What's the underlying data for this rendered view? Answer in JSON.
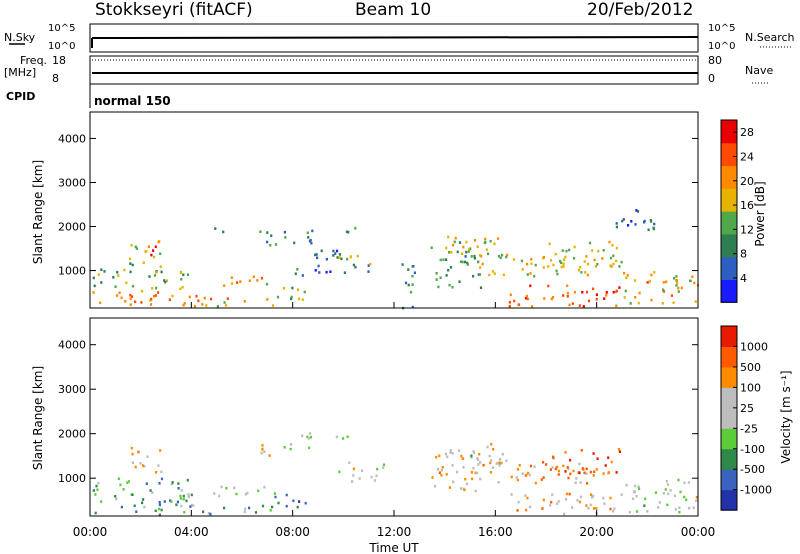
{
  "header": {
    "title": "Stokkseyri (fitACF)",
    "beam": "Beam 10",
    "date": "20/Feb/2012"
  },
  "status_panels": {
    "nsky": {
      "label": "N.Sky",
      "ticks": [
        "10^5",
        "10^0"
      ]
    },
    "nsearch": {
      "label": "N.Search",
      "ticks": [
        "10^5",
        "10^0"
      ]
    },
    "freq": {
      "label": "Freq.",
      "unit": "[MHz]",
      "ticks": [
        "18",
        "8"
      ]
    },
    "nave": {
      "label": "Nave",
      "ticks": [
        "80",
        "0"
      ]
    },
    "cpid": {
      "label": "CPID",
      "value": "normal 150"
    }
  },
  "chart_data": [
    {
      "type": "heatmap",
      "title": "",
      "xlabel": "Time UT",
      "ylabel": "Slant Range [km]",
      "xlim": [
        "00:00",
        "00:00"
      ],
      "xticks": [
        "00:00",
        "04:00",
        "08:00",
        "12:00",
        "16:00",
        "20:00",
        "00:00"
      ],
      "ylim": [
        150,
        4600
      ],
      "yticks": [
        1000,
        2000,
        3000,
        4000
      ],
      "colorbar": {
        "label": "Power [dB]",
        "ticks": [
          4,
          8,
          12,
          16,
          20,
          24,
          28
        ],
        "range": [
          0,
          30
        ],
        "colors": [
          "#1a1aff",
          "#2c5fbf",
          "#2d7f52",
          "#4fa84a",
          "#e6b400",
          "#ff8a00",
          "#ff4a00",
          "#e80000"
        ]
      },
      "regions": [
        {
          "t": [
            0.1,
            4.5
          ],
          "r": [
            200,
            560
          ],
          "level": 0.7
        },
        {
          "t": [
            0.1,
            4.0
          ],
          "r": [
            560,
            1050
          ],
          "level": 0.45
        },
        {
          "t": [
            1.5,
            2.8
          ],
          "r": [
            1100,
            1750
          ],
          "level": 0.5
        },
        {
          "t": [
            2.3,
            2.9
          ],
          "r": [
            1300,
            1700
          ],
          "level": 0.85
        },
        {
          "t": [
            4.0,
            7.2
          ],
          "r": [
            220,
            420
          ],
          "level": 0.65
        },
        {
          "t": [
            4.8,
            7.0
          ],
          "r": [
            620,
            900
          ],
          "level": 0.6
        },
        {
          "t": [
            6.6,
            7.4
          ],
          "r": [
            1500,
            1950
          ],
          "level": 0.35
        },
        {
          "t": [
            7.5,
            8.8
          ],
          "r": [
            1650,
            2050
          ],
          "level": 0.3
        },
        {
          "t": [
            7.0,
            8.5
          ],
          "r": [
            350,
            700
          ],
          "level": 0.45
        },
        {
          "t": [
            8.0,
            9.8
          ],
          "r": [
            900,
            1500
          ],
          "level": 0.25
        },
        {
          "t": [
            9.8,
            11.6
          ],
          "r": [
            950,
            1400
          ],
          "level": 0.4
        },
        {
          "t": [
            12.2,
            12.8
          ],
          "r": [
            150,
            1350
          ],
          "level": 0.3
        },
        {
          "t": [
            13.4,
            15.4
          ],
          "r": [
            600,
            1700
          ],
          "level": 0.4
        },
        {
          "t": [
            14.0,
            16.5
          ],
          "r": [
            1300,
            1800
          ],
          "level": 0.55
        },
        {
          "t": [
            15.3,
            20.0
          ],
          "r": [
            900,
            1400
          ],
          "level": 0.55
        },
        {
          "t": [
            16.5,
            21.0
          ],
          "r": [
            200,
            700
          ],
          "level": 0.8
        },
        {
          "t": [
            18.0,
            21.0
          ],
          "r": [
            1100,
            1700
          ],
          "level": 0.55
        },
        {
          "t": [
            21.0,
            24.0
          ],
          "r": [
            250,
            1000
          ],
          "level": 0.6
        },
        {
          "t": [
            20.5,
            22.5
          ],
          "r": [
            1900,
            2400
          ],
          "level": 0.2
        },
        {
          "t": [
            4.8,
            5.5
          ],
          "r": [
            1800,
            2000
          ],
          "level": 0.3
        },
        {
          "t": [
            9.7,
            10.5
          ],
          "r": [
            1900,
            2100
          ],
          "level": 0.3
        }
      ]
    },
    {
      "type": "heatmap",
      "title": "",
      "xlabel": "Time UT",
      "ylabel": "Slant Range [km]",
      "xlim": [
        "00:00",
        "00:00"
      ],
      "xticks": [
        "00:00",
        "04:00",
        "08:00",
        "12:00",
        "16:00",
        "20:00",
        "00:00"
      ],
      "ylim": [
        150,
        4600
      ],
      "yticks": [
        1000,
        2000,
        3000,
        4000
      ],
      "colorbar": {
        "label": "Velocity [m s⁻¹]",
        "ticks": [
          "1000",
          "500",
          "100",
          "25",
          "-25",
          "-100",
          "-500",
          "-1000"
        ],
        "range": [
          -1200,
          1200
        ],
        "colors": [
          "#2233aa",
          "#3a63c0",
          "#2f8a4a",
          "#5ccc38",
          "#bdbdbd",
          "#bdbdbd",
          "#ff8c00",
          "#ff5a00",
          "#e81a00"
        ]
      },
      "regions": [
        {
          "t": [
            0.1,
            4.5
          ],
          "r": [
            200,
            560
          ],
          "level": 0.3
        },
        {
          "t": [
            0.1,
            4.0
          ],
          "r": [
            560,
            1050
          ],
          "level": 0.35
        },
        {
          "t": [
            1.5,
            2.8
          ],
          "r": [
            1100,
            1750
          ],
          "level": 0.6
        },
        {
          "t": [
            4.0,
            7.2
          ],
          "r": [
            220,
            420
          ],
          "level": 0.35
        },
        {
          "t": [
            4.8,
            7.0
          ],
          "r": [
            620,
            900
          ],
          "level": 0.55
        },
        {
          "t": [
            6.6,
            7.4
          ],
          "r": [
            1500,
            1950
          ],
          "level": 0.65
        },
        {
          "t": [
            7.5,
            8.8
          ],
          "r": [
            1650,
            2050
          ],
          "level": 0.5
        },
        {
          "t": [
            7.0,
            8.5
          ],
          "r": [
            350,
            700
          ],
          "level": 0.25
        },
        {
          "t": [
            9.8,
            11.6
          ],
          "r": [
            950,
            1400
          ],
          "level": 0.5
        },
        {
          "t": [
            13.4,
            15.4
          ],
          "r": [
            600,
            1700
          ],
          "level": 0.62
        },
        {
          "t": [
            14.0,
            16.5
          ],
          "r": [
            1300,
            1800
          ],
          "level": 0.5
        },
        {
          "t": [
            15.3,
            20.0
          ],
          "r": [
            900,
            1400
          ],
          "level": 0.7
        },
        {
          "t": [
            16.5,
            21.0
          ],
          "r": [
            200,
            700
          ],
          "level": 0.65
        },
        {
          "t": [
            18.0,
            21.0
          ],
          "r": [
            1100,
            1700
          ],
          "level": 0.85
        },
        {
          "t": [
            21.0,
            24.0
          ],
          "r": [
            250,
            1000
          ],
          "level": 0.5
        },
        {
          "t": [
            9.7,
            10.5
          ],
          "r": [
            1900,
            2100
          ],
          "level": 0.5
        }
      ]
    }
  ]
}
